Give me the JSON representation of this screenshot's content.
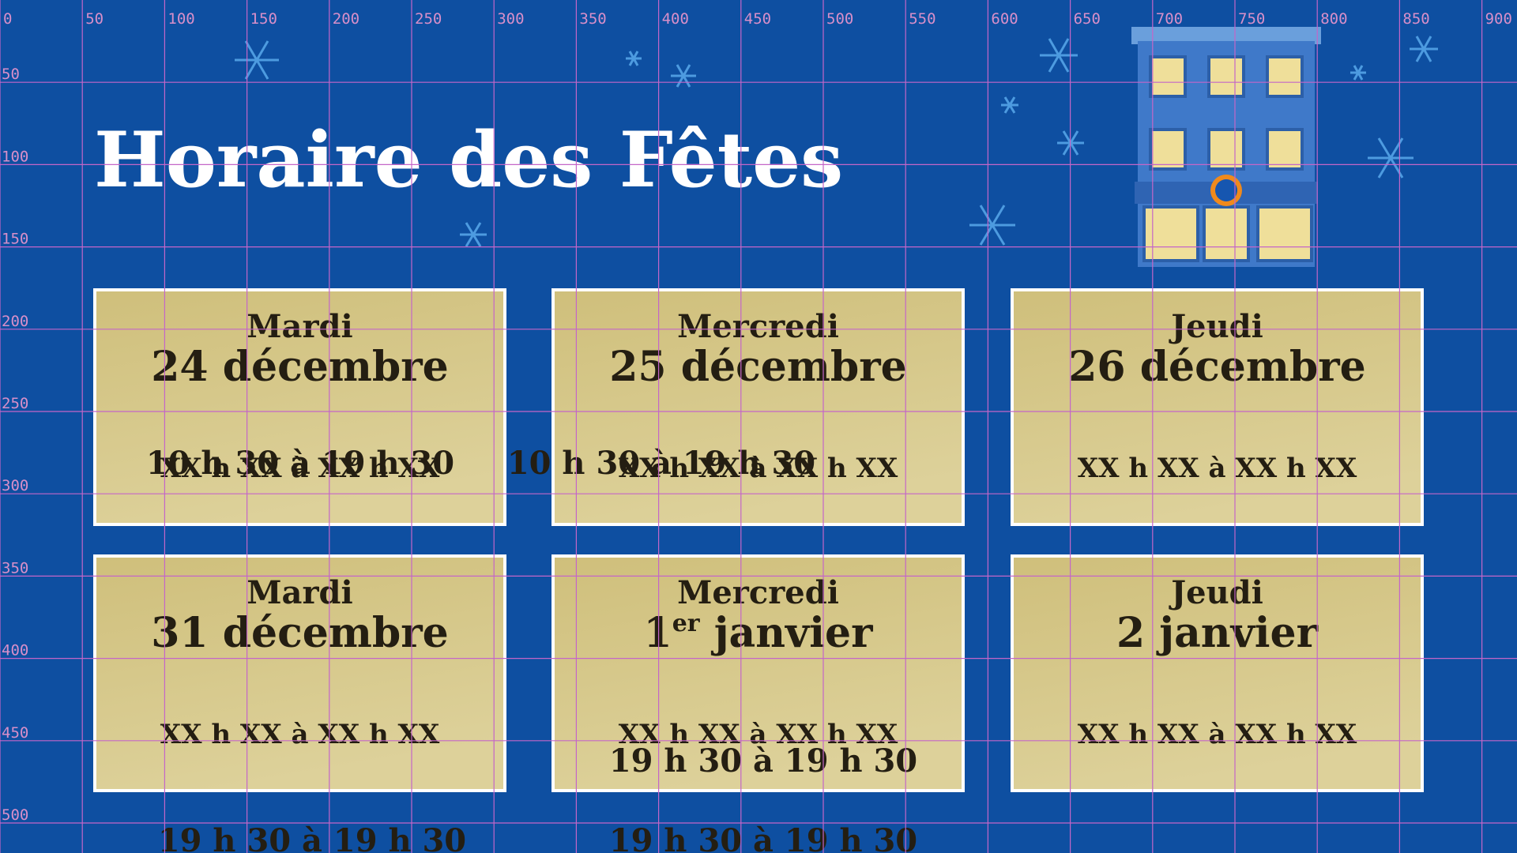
{
  "header": {
    "title": "Horaire des Fêtes"
  },
  "ruler": {
    "x_labels": [
      "0",
      "50",
      "100",
      "150",
      "200",
      "250",
      "300",
      "350",
      "400",
      "450",
      "500",
      "550",
      "600",
      "650",
      "700",
      "750",
      "800",
      "850",
      "900"
    ],
    "y_labels": [
      "50",
      "100",
      "150",
      "200",
      "250",
      "300",
      "350",
      "400",
      "450",
      "500"
    ]
  },
  "cards": [
    {
      "day": "Mardi",
      "date": "24 décembre",
      "hours": "XX h XX à XX h XX"
    },
    {
      "day": "Mercredi",
      "date": "25 décembre",
      "hours": "XX h XX à XX h XX"
    },
    {
      "day": "Jeudi",
      "date": "26 décembre",
      "hours": "XX h XX à XX h XX"
    },
    {
      "day": "Mardi",
      "date": "31 décembre",
      "hours": "XX h XX à XX h XX"
    },
    {
      "day": "Mercredi",
      "date_number": "1",
      "date_sup": "er",
      "date_rest": " janvier",
      "hours": "XX h XX à XX h XX"
    },
    {
      "day": "Jeudi",
      "date": "2 janvier",
      "hours": "XX h XX à XX h XX"
    }
  ],
  "overlays": [
    "10 h 30 à 19 h 30",
    "10 h 30 à 19 h 30",
    "19 h 30 à 19 h 30",
    "19 h 30 à 19 h 30",
    "19 h 30 à 19 h 30"
  ]
}
